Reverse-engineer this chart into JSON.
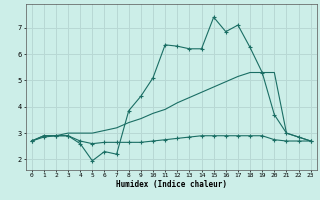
{
  "xlabel": "Humidex (Indice chaleur)",
  "background_color": "#cceee8",
  "grid_color": "#b8d8d4",
  "line_color": "#1a6e64",
  "xlim": [
    -0.5,
    23.5
  ],
  "ylim": [
    1.6,
    7.9
  ],
  "yticks": [
    2,
    3,
    4,
    5,
    6,
    7
  ],
  "xticks": [
    0,
    1,
    2,
    3,
    4,
    5,
    6,
    7,
    8,
    9,
    10,
    11,
    12,
    13,
    14,
    15,
    16,
    17,
    18,
    19,
    20,
    21,
    22,
    23
  ],
  "line_jagged_x": [
    0,
    1,
    2,
    3,
    4,
    5,
    6,
    7,
    8,
    9,
    10,
    11,
    12,
    13,
    14,
    15,
    16,
    17,
    18,
    19,
    20,
    21,
    22,
    23
  ],
  "line_jagged_y": [
    2.7,
    2.9,
    2.9,
    2.9,
    2.6,
    1.95,
    2.3,
    2.2,
    3.85,
    4.4,
    5.1,
    6.35,
    6.3,
    6.2,
    6.2,
    7.4,
    6.85,
    7.1,
    6.25,
    5.3,
    3.7,
    3.0,
    2.85,
    2.7
  ],
  "line_flat_x": [
    0,
    1,
    2,
    3,
    4,
    5,
    6,
    7,
    8,
    9,
    10,
    11,
    12,
    13,
    14,
    15,
    16,
    17,
    18,
    19,
    20,
    21,
    22,
    23
  ],
  "line_flat_y": [
    2.7,
    2.85,
    2.9,
    2.9,
    2.7,
    2.6,
    2.65,
    2.65,
    2.65,
    2.65,
    2.7,
    2.75,
    2.8,
    2.85,
    2.9,
    2.9,
    2.9,
    2.9,
    2.9,
    2.9,
    2.75,
    2.7,
    2.7,
    2.7
  ],
  "line_diag_x": [
    0,
    1,
    2,
    3,
    4,
    5,
    6,
    7,
    8,
    9,
    10,
    11,
    12,
    13,
    14,
    15,
    16,
    17,
    18,
    19,
    20,
    21,
    22,
    23
  ],
  "line_diag_y": [
    2.7,
    2.9,
    2.9,
    3.0,
    3.0,
    3.0,
    3.1,
    3.2,
    3.4,
    3.55,
    3.75,
    3.9,
    4.15,
    4.35,
    4.55,
    4.75,
    4.95,
    5.15,
    5.3,
    5.3,
    5.3,
    3.0,
    2.85,
    2.7
  ]
}
